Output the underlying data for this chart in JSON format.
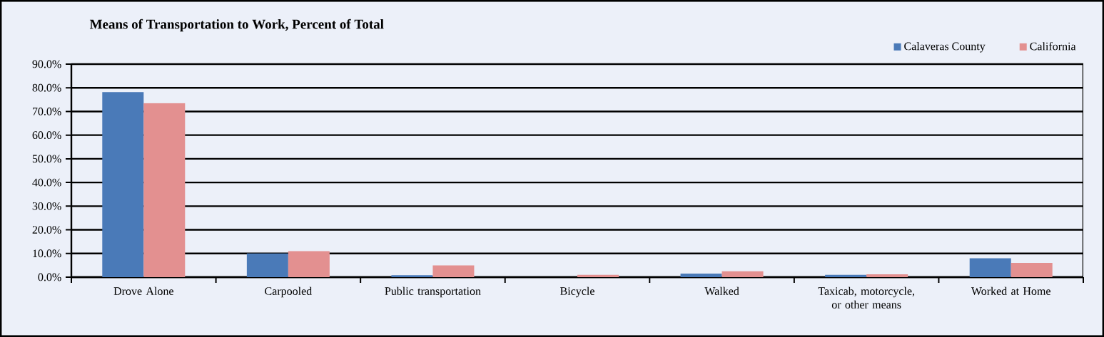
{
  "chart_data": {
    "type": "bar",
    "title": "Means of Transportation to Work, Percent of Total",
    "categories": [
      "Drove Alone",
      "Carpooled",
      "Public transportation",
      "Bicycle",
      "Walked",
      "Taxicab, motorcycle, or other means",
      "Worked at Home"
    ],
    "series": [
      {
        "name": "Calaveras County",
        "color": "#4a7ab8",
        "values": [
          78.2,
          10.0,
          0.8,
          null,
          1.5,
          1.0,
          8.0
        ]
      },
      {
        "name": "California",
        "color": "#e39090",
        "values": [
          73.5,
          11.0,
          5.0,
          1.0,
          2.5,
          1.2,
          6.0
        ]
      }
    ],
    "ylim": [
      0,
      90
    ],
    "yticks": [
      {
        "value": 0,
        "label": "0.0%"
      },
      {
        "value": 10,
        "label": "10.0%"
      },
      {
        "value": 20,
        "label": "20.0%"
      },
      {
        "value": 30,
        "label": "30.0%"
      },
      {
        "value": 40,
        "label": "40.0%"
      },
      {
        "value": 50,
        "label": "50.0%"
      },
      {
        "value": 60,
        "label": "60.0%"
      },
      {
        "value": 70,
        "label": "70.0%"
      },
      {
        "value": 80,
        "label": "80.0%"
      },
      {
        "value": 90,
        "label": "90.0%"
      }
    ],
    "grid": "y",
    "legend": "top right"
  }
}
